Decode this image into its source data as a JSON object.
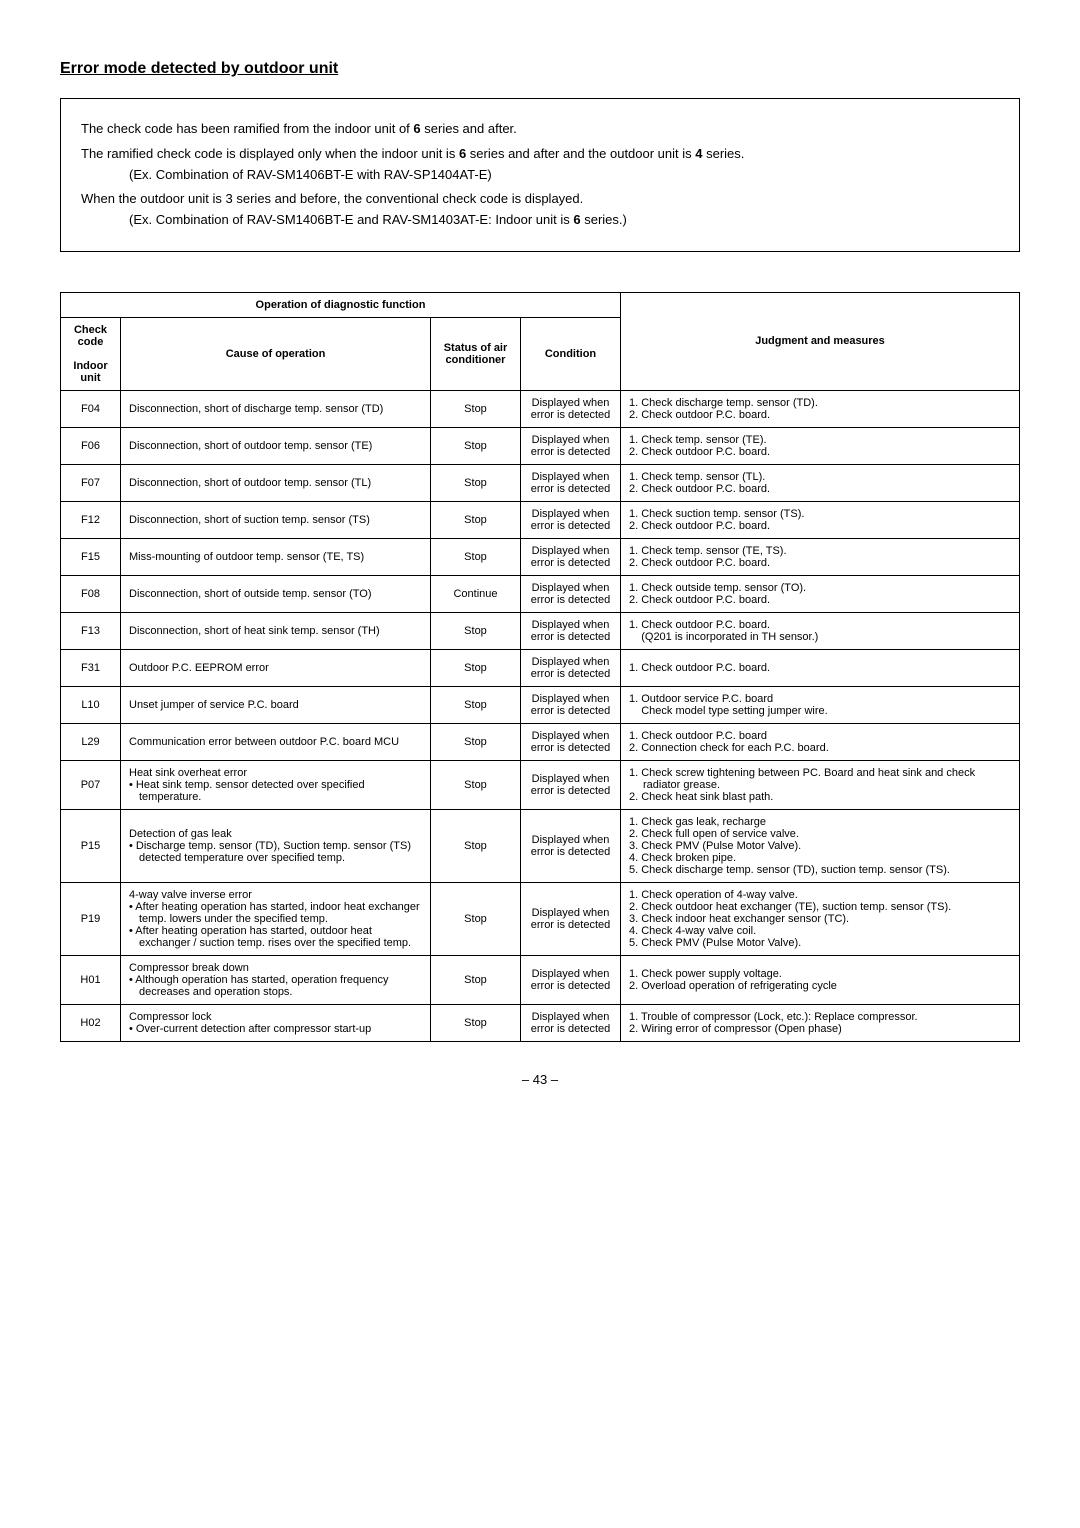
{
  "title": "Error mode detected by outdoor unit",
  "infobox": {
    "p1_a": "The check code has been ramified from the indoor unit of ",
    "p1_bold": "6",
    "p1_b": " series and after.",
    "p2_a": "The ramified check code is displayed only when the indoor unit is ",
    "p2_bold": "6",
    "p2_b": " series and after and the outdoor unit is ",
    "p2_bold2": "4",
    "p2_c": " series.",
    "p2_indent": "(Ex. Combination of RAV-SM1406BT-E with RAV-SP1404AT-E)",
    "p3": "When the outdoor unit is 3 series and before, the conventional check code is displayed.",
    "p3_indent_a": "(Ex. Combination of RAV-SM1406BT-E and RAV-SM1403AT-E: Indoor unit is ",
    "p3_indent_bold": "6",
    "p3_indent_b": " series.)"
  },
  "headers": {
    "operation": "Operation of diagnostic function",
    "check_code": "Check code",
    "indoor_unit": "Indoor unit",
    "cause": "Cause of operation",
    "status": "Status of air conditioner",
    "condition": "Condition",
    "judgment": "Judgment and measures"
  },
  "rows": [
    {
      "code": "F04",
      "cause": [
        "Disconnection, short of discharge temp. sensor (TD)"
      ],
      "status": "Stop",
      "condition": "Displayed when error is detected",
      "measures": [
        "1. Check discharge temp. sensor (TD).",
        "2. Check outdoor P.C. board."
      ]
    },
    {
      "code": "F06",
      "cause": [
        "Disconnection, short of outdoor temp. sensor (TE)"
      ],
      "status": "Stop",
      "condition": "Displayed when error is detected",
      "measures": [
        "1. Check temp. sensor (TE).",
        "2. Check outdoor P.C. board."
      ]
    },
    {
      "code": "F07",
      "cause": [
        "Disconnection, short of outdoor temp. sensor (TL)"
      ],
      "status": "Stop",
      "condition": "Displayed when error is detected",
      "measures": [
        "1. Check temp. sensor (TL).",
        "2. Check outdoor P.C. board."
      ]
    },
    {
      "code": "F12",
      "cause": [
        "Disconnection, short of suction temp. sensor (TS)"
      ],
      "status": "Stop",
      "condition": "Displayed when error is detected",
      "measures": [
        "1. Check suction temp. sensor (TS).",
        "2. Check outdoor P.C. board."
      ]
    },
    {
      "code": "F15",
      "cause": [
        "Miss-mounting of outdoor temp. sensor (TE, TS)"
      ],
      "status": "Stop",
      "condition": "Displayed when error is detected",
      "measures": [
        "1. Check temp. sensor (TE, TS).",
        "2. Check outdoor P.C. board."
      ]
    },
    {
      "code": "F08",
      "cause": [
        "Disconnection, short of outside temp. sensor (TO)"
      ],
      "status": "Continue",
      "condition": "Displayed when error is detected",
      "measures": [
        "1. Check outside temp. sensor (TO).",
        "2. Check outdoor P.C. board."
      ]
    },
    {
      "code": "F13",
      "cause": [
        "Disconnection, short of heat sink temp. sensor (TH)"
      ],
      "status": "Stop",
      "condition": "Displayed when error is detected",
      "measures": [
        "1. Check outdoor P.C. board.",
        "    (Q201 is incorporated in TH sensor.)"
      ]
    },
    {
      "code": "F31",
      "cause": [
        "Outdoor P.C. EEPROM error"
      ],
      "status": "Stop",
      "condition": "Displayed when error is detected",
      "measures": [
        "1. Check outdoor P.C. board."
      ]
    },
    {
      "code": "L10",
      "cause": [
        "Unset jumper of service P.C. board"
      ],
      "status": "Stop",
      "condition": "Displayed when error is detected",
      "measures": [
        "1. Outdoor service P.C. board",
        "    Check model type setting jumper wire."
      ]
    },
    {
      "code": "L29",
      "cause": [
        "Communication error between outdoor P.C. board MCU"
      ],
      "status": "Stop",
      "condition": "Displayed when error is detected",
      "measures": [
        "1. Check outdoor P.C. board",
        "2. Connection check for each P.C. board."
      ]
    },
    {
      "code": "P07",
      "cause": [
        "Heat sink overheat error",
        "• Heat sink temp. sensor detected over specified temperature."
      ],
      "status": "Stop",
      "condition": "Displayed when error is detected",
      "measures": [
        "1. Check screw tightening between PC. Board and heat sink and check radiator grease.",
        "2. Check heat sink blast path."
      ]
    },
    {
      "code": "P15",
      "cause": [
        "Detection of gas leak",
        "• Discharge temp. sensor (TD), Suction temp. sensor (TS) detected temperature over specified temp."
      ],
      "status": "Stop",
      "condition": "Displayed when error is detected",
      "measures": [
        "1. Check gas leak, recharge",
        "2. Check full open of service valve.",
        "3. Check PMV (Pulse Motor Valve).",
        "4. Check broken pipe.",
        "5. Check discharge temp. sensor (TD), suction temp. sensor (TS)."
      ]
    },
    {
      "code": "P19",
      "cause": [
        "4-way valve inverse error",
        "• After heating operation has started, indoor heat exchanger temp. lowers under the specified temp.",
        "• After heating operation has started, outdoor heat exchanger / suction temp. rises over the specified temp."
      ],
      "status": "Stop",
      "condition": "Displayed when error is detected",
      "measures": [
        "1. Check operation of 4-way valve.",
        "2. Check outdoor heat exchanger (TE), suction temp. sensor (TS).",
        "3. Check indoor heat exchanger sensor (TC).",
        "4. Check 4-way valve coil.",
        "5. Check PMV (Pulse Motor Valve)."
      ]
    },
    {
      "code": "H01",
      "cause": [
        "Compressor break down",
        "• Although operation has started, operation frequency decreases and operation stops."
      ],
      "status": "Stop",
      "condition": "Displayed when error is detected",
      "measures": [
        "1. Check power supply voltage.",
        "2. Overload operation of refrigerating cycle"
      ]
    },
    {
      "code": "H02",
      "cause": [
        "Compressor lock",
        "• Over-current detection after compressor start-up"
      ],
      "status": "Stop",
      "condition": "Displayed when error is detected",
      "measures": [
        "1. Trouble of compressor (Lock, etc.): Replace compressor.",
        "2. Wiring error of compressor (Open phase)"
      ]
    }
  ],
  "page_number": "– 43 –"
}
